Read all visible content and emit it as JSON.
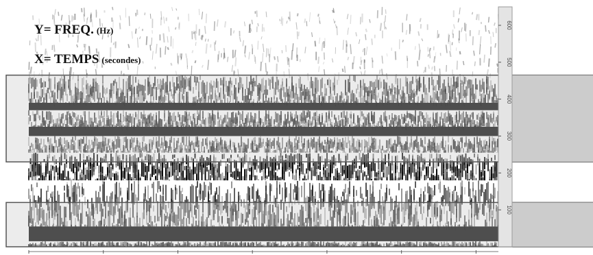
{
  "chart_data": {
    "type": "heatmap",
    "title": "",
    "ylabel": {
      "prefix": "Y= FREQ.",
      "unit": "(Hz)"
    },
    "xlabel": {
      "prefix": "X= TEMPS",
      "unit": "(secondes)"
    },
    "x_range": [
      0,
      6.3
    ],
    "x_ticks": [
      0,
      1,
      2,
      3,
      4,
      5,
      6
    ],
    "y_range": [
      0,
      650
    ],
    "y_ticks": [
      {
        "value": 100,
        "label": "100"
      },
      {
        "value": 200,
        "label": "200"
      },
      {
        "value": 300,
        "label": "300"
      },
      {
        "value": 400,
        "label": "400"
      },
      {
        "value": 500,
        "label": "500"
      },
      {
        "value": 600,
        "label": "600"
      }
    ],
    "colormap": "grayscale",
    "intensity_bands": [
      {
        "from": 0,
        "to": 15,
        "level": 0.8,
        "pattern": "striated"
      },
      {
        "from": 15,
        "to": 55,
        "level": 1.0,
        "pattern": "solid"
      },
      {
        "from": 55,
        "to": 180,
        "level": 0.7,
        "pattern": "striated"
      },
      {
        "from": 180,
        "to": 255,
        "level": 0.9,
        "pattern": "speckled"
      },
      {
        "from": 255,
        "to": 300,
        "level": 0.6,
        "pattern": "striated"
      },
      {
        "from": 300,
        "to": 325,
        "level": 1.0,
        "pattern": "solid"
      },
      {
        "from": 325,
        "to": 370,
        "level": 0.7,
        "pattern": "striated"
      },
      {
        "from": 370,
        "to": 390,
        "level": 1.0,
        "pattern": "solid"
      },
      {
        "from": 390,
        "to": 465,
        "level": 0.7,
        "pattern": "striated"
      },
      {
        "from": 465,
        "to": 650,
        "level": 0.25,
        "pattern": "sparse"
      }
    ],
    "highlighted_frequency_bands": [
      {
        "from": 0,
        "to": 120
      },
      {
        "from": 230,
        "to": 465
      }
    ]
  },
  "colors": {
    "ink": "#000000",
    "highlight_fill": "#c9c9c9",
    "highlight_stroke": "#555555",
    "axis_strip": "#e4e4e4"
  }
}
